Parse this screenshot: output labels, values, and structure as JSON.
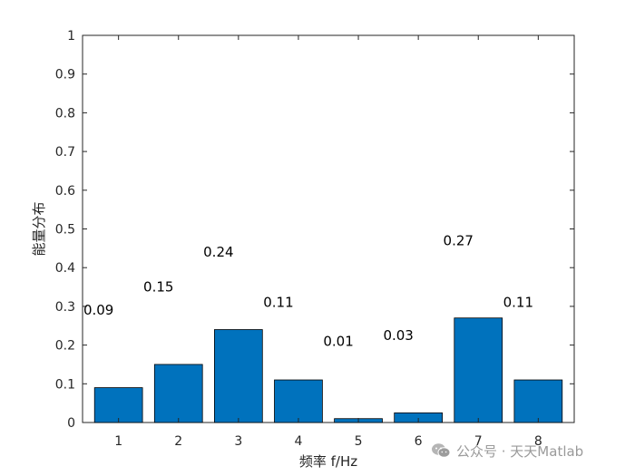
{
  "chart_data": {
    "type": "bar",
    "categories": [
      "1",
      "2",
      "3",
      "4",
      "5",
      "6",
      "7",
      "8"
    ],
    "values": [
      0.09,
      0.15,
      0.24,
      0.11,
      0.01,
      0.025,
      0.27,
      0.11
    ],
    "data_labels": [
      "0.09",
      "0.15",
      "0.24",
      "0.11",
      "0.01",
      "0.03",
      "0.27",
      "0.11"
    ],
    "title": "",
    "xlabel": "频率 f/Hz",
    "ylabel": "能量分布",
    "ylim": [
      0,
      1
    ],
    "yticks": [
      "0",
      "0.1",
      "0.2",
      "0.3",
      "0.4",
      "0.5",
      "0.6",
      "0.7",
      "0.8",
      "0.9",
      "1"
    ],
    "grid": false,
    "bar_color": "#0072BD"
  },
  "watermark": {
    "text": "公众号 · 天天Matlab",
    "icon": "wechat-icon"
  }
}
